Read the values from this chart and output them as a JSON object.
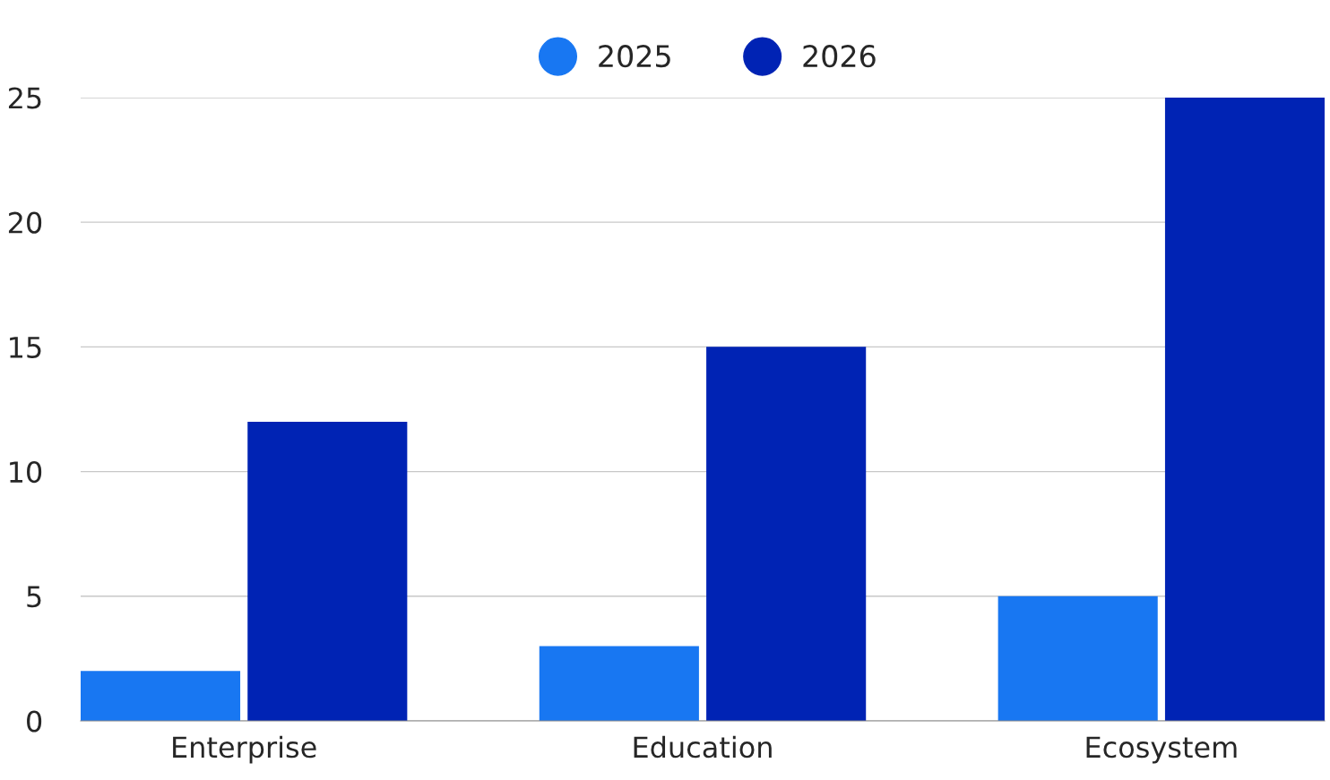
{
  "chart_data": {
    "type": "bar",
    "categories": [
      "Enterprise",
      "Education",
      "Ecosystem"
    ],
    "series": [
      {
        "name": "2025",
        "color": "#1877f2",
        "values": [
          2,
          3,
          5
        ]
      },
      {
        "name": "2026",
        "color": "#0023b4",
        "values": [
          12,
          15,
          25
        ]
      }
    ],
    "ylim": [
      0,
      25
    ],
    "yticks": [
      0,
      5,
      10,
      15,
      20,
      25
    ],
    "grid": "y",
    "legend": "top"
  }
}
